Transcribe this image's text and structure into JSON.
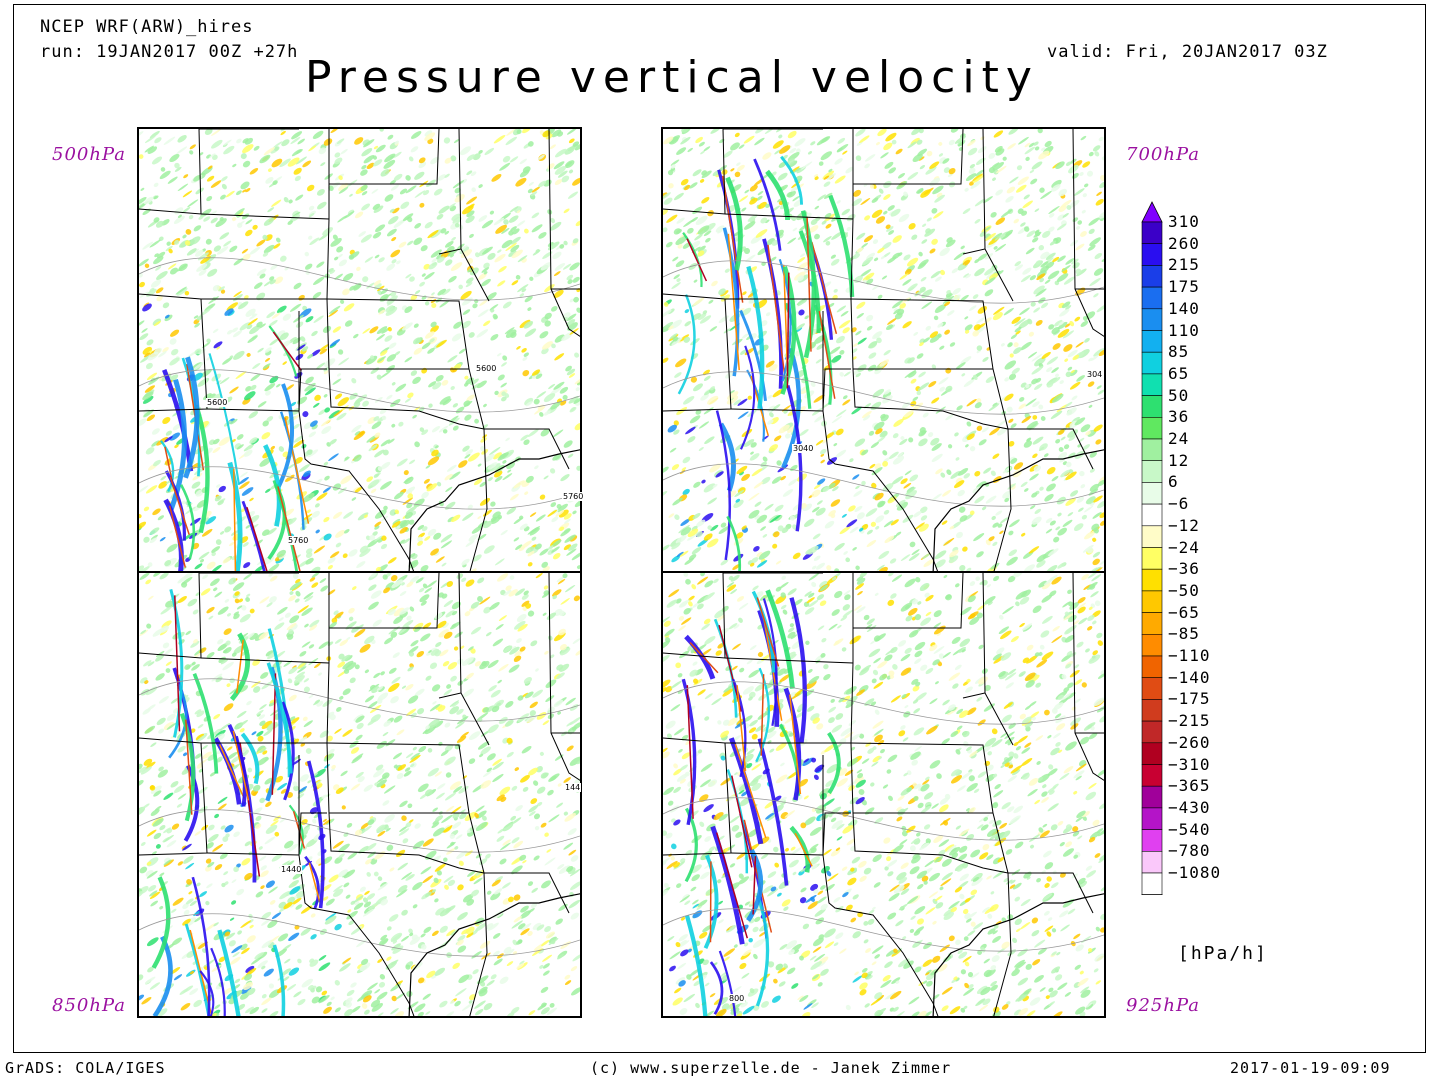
{
  "header": {
    "model": "NCEP WRF(ARW)_hires",
    "run": "run: 19JAN2017 00Z +27h",
    "valid": "valid: Fri, 20JAN2017 03Z",
    "title": "Pressure vertical velocity"
  },
  "panels": [
    {
      "level": "500hPa",
      "contours": [
        "5600",
        "5600",
        "5760",
        "5760"
      ]
    },
    {
      "level": "700hPa",
      "contours": [
        "3040",
        "304"
      ]
    },
    {
      "level": "850hPa",
      "contours": [
        "1440",
        "144"
      ]
    },
    {
      "level": "925hPa",
      "contours": [
        "800"
      ]
    }
  ],
  "colorbar": {
    "unit": "[hPa/h]",
    "labels": [
      "310",
      "260",
      "215",
      "175",
      "140",
      "110",
      "85",
      "65",
      "50",
      "36",
      "24",
      "12",
      "6",
      "-6",
      "-12",
      "-24",
      "-36",
      "-50",
      "-65",
      "-85",
      "-110",
      "-140",
      "-175",
      "-215",
      "-260",
      "-310",
      "-365",
      "-430",
      "-540",
      "-780",
      "-1080"
    ],
    "colors": [
      "#3b00c8",
      "#2a0ef0",
      "#1a3ee8",
      "#1a6ef0",
      "#1a8ef0",
      "#12b0f0",
      "#10d0e0",
      "#10e0b0",
      "#2ee070",
      "#60e860",
      "#a0f0a0",
      "#c8f8c8",
      "#e8fce8",
      "#ffffff",
      "#fffcc8",
      "#ffff64",
      "#ffe000",
      "#ffc800",
      "#ffaa00",
      "#ff8c00",
      "#f06400",
      "#e04c14",
      "#d03c1e",
      "#c02828",
      "#b00020",
      "#c80032",
      "#a0009a",
      "#b414c8",
      "#e040f0",
      "#fac8fa",
      "#ffffff"
    ],
    "top_color": "#8000ff"
  },
  "footer": {
    "left": "GrADS: COLA/IGES",
    "center": "(c) www.superzelle.de - Janek Zimmer",
    "right": "2017-01-19-09:09"
  }
}
